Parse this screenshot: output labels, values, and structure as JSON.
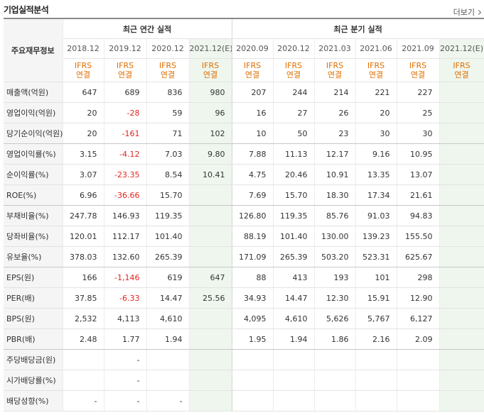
{
  "section": {
    "title": "기업실적분석",
    "more_label": "더보기"
  },
  "table": {
    "row_header_label": "주요재무정보",
    "group_annual": "최근 연간 실적",
    "group_quarter": "최근 분기 실적",
    "annual_periods": [
      "2018.12",
      "2019.12",
      "2020.12",
      "2021.12(E)"
    ],
    "quarter_periods": [
      "2020.09",
      "2020.12",
      "2021.03",
      "2021.06",
      "2021.09",
      "2021.12(E)"
    ],
    "basis_line1": "IFRS",
    "basis_line2": "연결",
    "rows": [
      {
        "label": "매출액(억원)",
        "annual": [
          "647",
          "689",
          "836",
          "980"
        ],
        "quarter": [
          "207",
          "244",
          "214",
          "221",
          "227",
          ""
        ]
      },
      {
        "label": "영업이익(억원)",
        "annual": [
          "20",
          "-28",
          "59",
          "96"
        ],
        "quarter": [
          "16",
          "27",
          "26",
          "20",
          "25",
          ""
        ]
      },
      {
        "label": "당기순이익(억원)",
        "annual": [
          "20",
          "-161",
          "71",
          "102"
        ],
        "quarter": [
          "10",
          "50",
          "23",
          "30",
          "30",
          ""
        ]
      },
      {
        "label": "영업이익률(%)",
        "annual": [
          "3.15",
          "-4.12",
          "7.03",
          "9.80"
        ],
        "quarter": [
          "7.88",
          "11.13",
          "12.17",
          "9.16",
          "10.95",
          ""
        ]
      },
      {
        "label": "순이익률(%)",
        "annual": [
          "3.07",
          "-23.35",
          "8.54",
          "10.41"
        ],
        "quarter": [
          "4.75",
          "20.46",
          "10.91",
          "13.35",
          "13.07",
          ""
        ]
      },
      {
        "label": "ROE(%)",
        "annual": [
          "6.96",
          "-36.66",
          "15.70",
          ""
        ],
        "quarter": [
          "7.69",
          "15.70",
          "18.30",
          "17.34",
          "21.61",
          ""
        ]
      },
      {
        "label": "부채비율(%)",
        "annual": [
          "247.78",
          "146.93",
          "119.35",
          ""
        ],
        "quarter": [
          "126.80",
          "119.35",
          "85.76",
          "91.03",
          "94.83",
          ""
        ]
      },
      {
        "label": "당좌비율(%)",
        "annual": [
          "120.01",
          "112.17",
          "101.40",
          ""
        ],
        "quarter": [
          "88.19",
          "101.40",
          "130.00",
          "139.23",
          "155.50",
          ""
        ]
      },
      {
        "label": "유보율(%)",
        "annual": [
          "378.03",
          "132.60",
          "265.39",
          ""
        ],
        "quarter": [
          "171.09",
          "265.39",
          "503.20",
          "523.31",
          "625.67",
          ""
        ]
      },
      {
        "label": "EPS(원)",
        "annual": [
          "166",
          "-1,146",
          "619",
          "647"
        ],
        "quarter": [
          "88",
          "413",
          "193",
          "101",
          "298",
          ""
        ]
      },
      {
        "label": "PER(배)",
        "annual": [
          "37.85",
          "-6.33",
          "14.47",
          "25.56"
        ],
        "quarter": [
          "34.93",
          "14.47",
          "12.30",
          "15.91",
          "12.90",
          ""
        ]
      },
      {
        "label": "BPS(원)",
        "annual": [
          "2,532",
          "4,113",
          "4,610",
          ""
        ],
        "quarter": [
          "4,095",
          "4,610",
          "5,626",
          "5,767",
          "6,127",
          ""
        ]
      },
      {
        "label": "PBR(배)",
        "annual": [
          "2.48",
          "1.77",
          "1.94",
          ""
        ],
        "quarter": [
          "1.95",
          "1.94",
          "1.86",
          "2.16",
          "2.09",
          ""
        ]
      },
      {
        "label": "주당배당금(원)",
        "annual": [
          "",
          "-",
          "",
          ""
        ],
        "quarter": [
          "",
          "",
          "",
          "",
          "",
          ""
        ]
      },
      {
        "label": "시가배당률(%)",
        "annual": [
          "",
          "-",
          "",
          ""
        ],
        "quarter": [
          "",
          "",
          "",
          "",
          "",
          ""
        ]
      },
      {
        "label": "배당성향(%)",
        "annual": [
          "-",
          "-",
          "-",
          ""
        ],
        "quarter": [
          "",
          "",
          "",
          "",
          "",
          ""
        ]
      }
    ]
  }
}
